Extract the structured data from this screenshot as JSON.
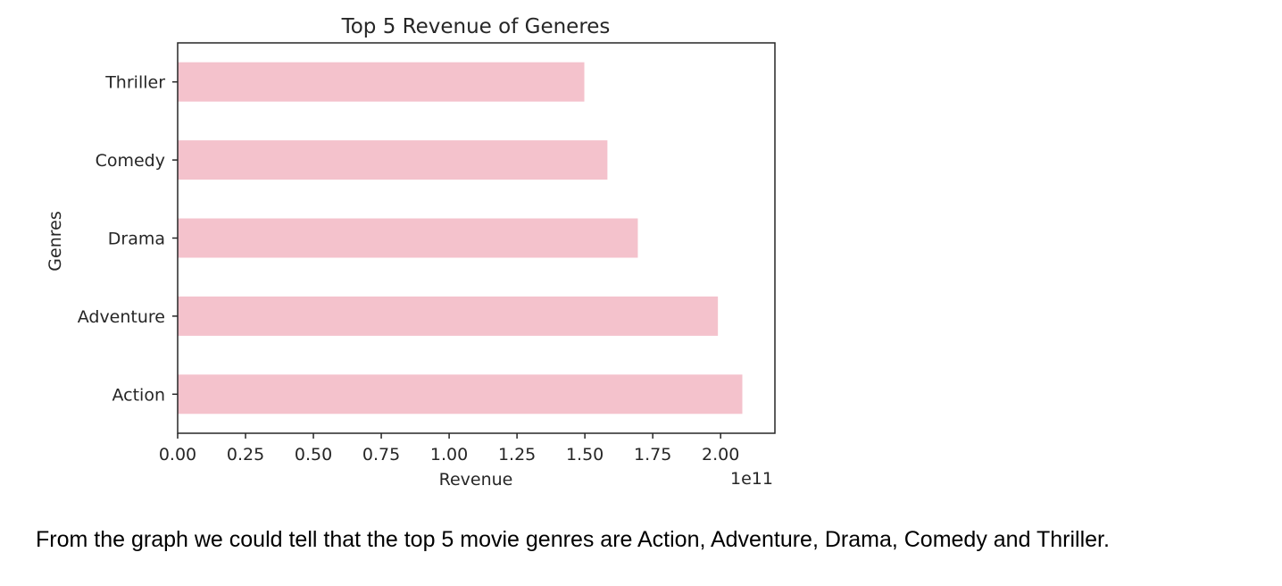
{
  "chart_data": {
    "type": "bar",
    "orientation": "horizontal",
    "title": "Top 5 Revenue of Generes",
    "xlabel": "Revenue",
    "ylabel": "Genres",
    "offset_label": "1e11",
    "categories": [
      "Action",
      "Adventure",
      "Drama",
      "Comedy",
      "Thriller"
    ],
    "values": [
      208000000000,
      199000000000,
      169500000000,
      158300000000,
      149800000000
    ],
    "xlim": [
      0,
      2.2
    ],
    "x_ticks": [
      0.0,
      0.25,
      0.5,
      0.75,
      1.0,
      1.25,
      1.5,
      1.75,
      2.0
    ],
    "x_tick_labels": [
      "0.00",
      "0.25",
      "0.50",
      "0.75",
      "1.00",
      "1.25",
      "1.50",
      "1.75",
      "2.00"
    ],
    "x_scale": 100000000000,
    "bar_color": "#f4c2cc",
    "grid": false,
    "legend": false
  },
  "caption": "From the graph we could tell that the top 5 movie genres are Action, Adventure, Drama, Comedy and Thriller."
}
